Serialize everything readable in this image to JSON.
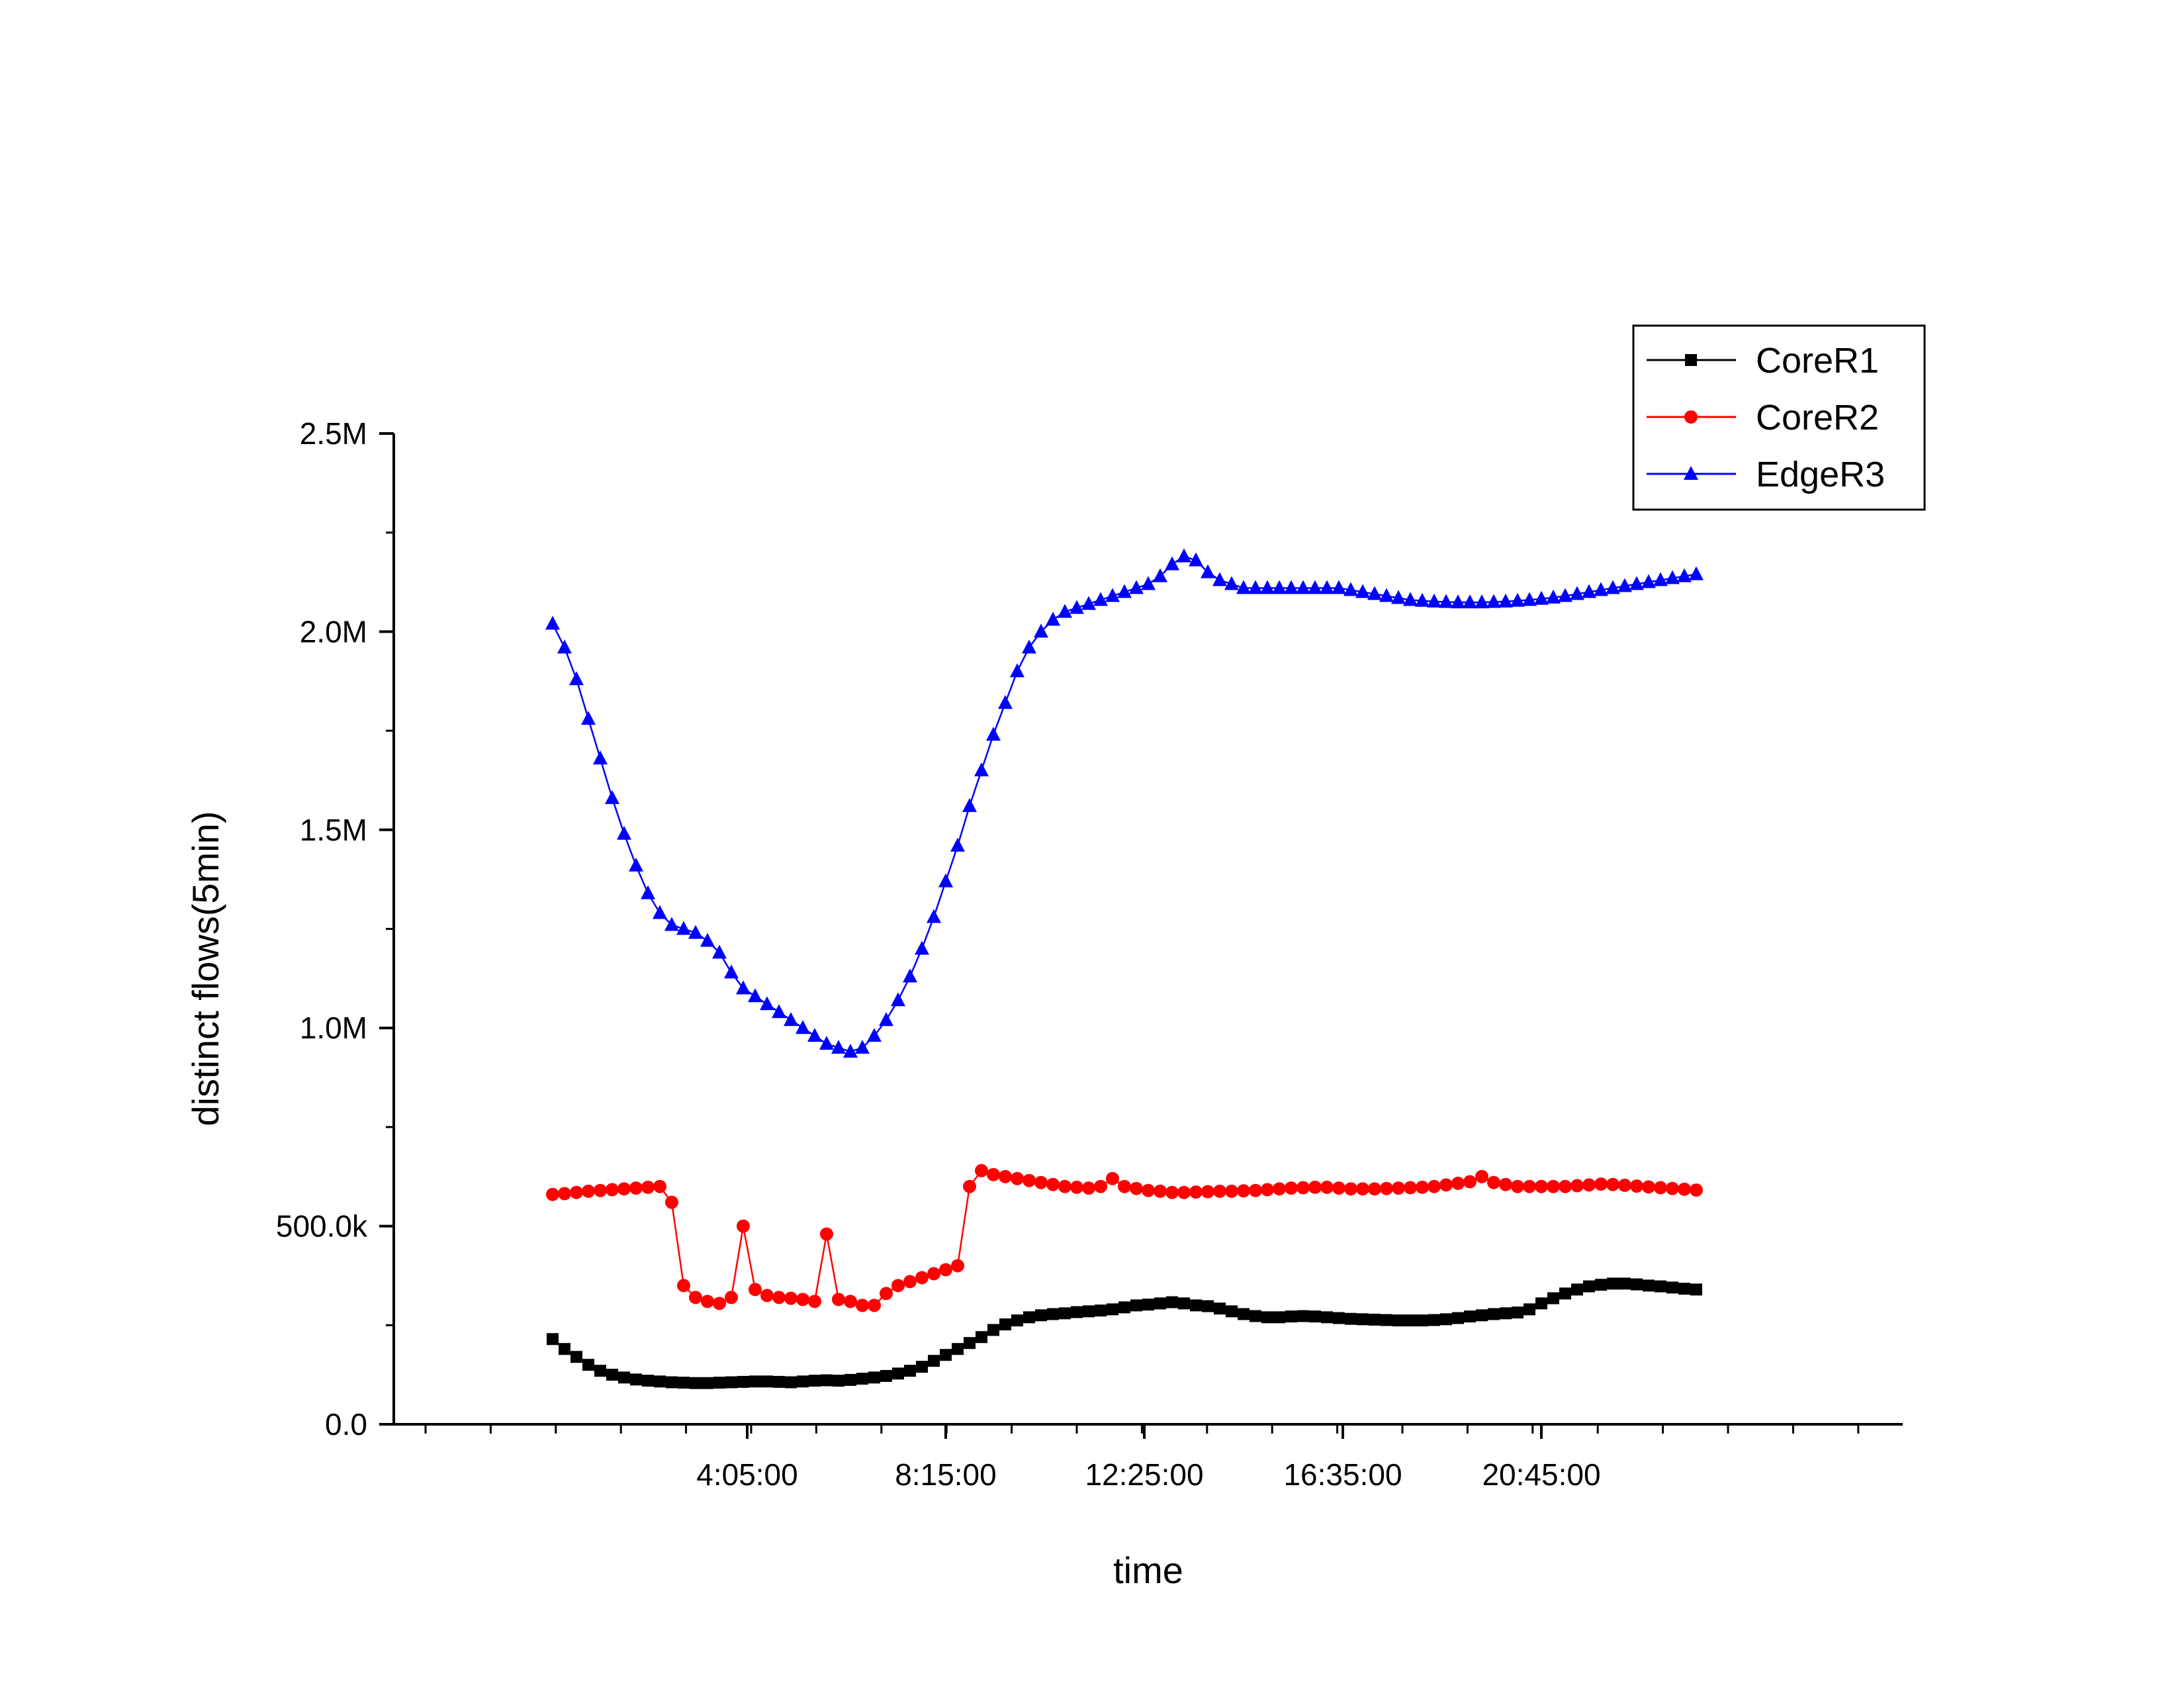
{
  "chart_data": {
    "type": "line",
    "title": "",
    "xlabel": "time",
    "ylabel": "distinct flows(5min)",
    "x_unit": "minutes since 0:00",
    "xlim": [
      -200,
      1700
    ],
    "ylim": [
      0,
      2500000
    ],
    "grid": false,
    "legend_position": "top-right",
    "x_ticks": [
      {
        "value": 245,
        "label": "4:05:00"
      },
      {
        "value": 495,
        "label": "8:15:00"
      },
      {
        "value": 745,
        "label": "12:25:00"
      },
      {
        "value": 995,
        "label": "16:35:00"
      },
      {
        "value": 1245,
        "label": "20:45:00"
      }
    ],
    "y_ticks": [
      {
        "value": 0,
        "label": "0.0"
      },
      {
        "value": 500000,
        "label": "500.0k"
      },
      {
        "value": 1000000,
        "label": "1.0M"
      },
      {
        "value": 1500000,
        "label": "1.5M"
      },
      {
        "value": 2000000,
        "label": "2.0M"
      },
      {
        "value": 2500000,
        "label": "2.5M"
      }
    ],
    "x": [
      0,
      15,
      30,
      45,
      60,
      75,
      90,
      105,
      120,
      135,
      150,
      165,
      180,
      195,
      210,
      225,
      240,
      255,
      270,
      285,
      300,
      315,
      330,
      345,
      360,
      375,
      390,
      405,
      420,
      435,
      450,
      465,
      480,
      495,
      510,
      525,
      540,
      555,
      570,
      585,
      600,
      615,
      630,
      645,
      660,
      675,
      690,
      705,
      720,
      735,
      750,
      765,
      780,
      795,
      810,
      825,
      840,
      855,
      870,
      885,
      900,
      915,
      930,
      945,
      960,
      975,
      990,
      1005,
      1020,
      1035,
      1050,
      1065,
      1080,
      1095,
      1110,
      1125,
      1140,
      1155,
      1170,
      1185,
      1200,
      1215,
      1230,
      1245,
      1260,
      1275,
      1290,
      1305,
      1320,
      1335,
      1350,
      1365,
      1380,
      1395,
      1410,
      1425,
      1440
    ],
    "series": [
      {
        "name": "CoreR1",
        "color": "#000000",
        "marker": "square",
        "values": [
          215000,
          190000,
          170000,
          150000,
          135000,
          125000,
          118000,
          113000,
          110000,
          108000,
          106000,
          105000,
          104000,
          104000,
          105000,
          106000,
          107000,
          108000,
          108000,
          107000,
          106000,
          108000,
          110000,
          111000,
          110000,
          112000,
          115000,
          118000,
          122000,
          128000,
          135000,
          145000,
          160000,
          175000,
          190000,
          205000,
          220000,
          238000,
          252000,
          262000,
          270000,
          275000,
          278000,
          280000,
          283000,
          285000,
          287000,
          290000,
          295000,
          300000,
          302000,
          305000,
          308000,
          305000,
          300000,
          298000,
          292000,
          285000,
          278000,
          273000,
          270000,
          270000,
          272000,
          273000,
          272000,
          270000,
          268000,
          266000,
          265000,
          264000,
          263000,
          262000,
          262000,
          262000,
          263000,
          265000,
          268000,
          272000,
          275000,
          278000,
          280000,
          282000,
          290000,
          305000,
          318000,
          330000,
          340000,
          348000,
          352000,
          355000,
          355000,
          353000,
          350000,
          348000,
          345000,
          342000,
          340000
        ]
      },
      {
        "name": "CoreR2",
        "color": "#ff0000",
        "marker": "circle",
        "values": [
          580000,
          582000,
          585000,
          588000,
          590000,
          592000,
          594000,
          596000,
          598000,
          600000,
          560000,
          350000,
          320000,
          310000,
          305000,
          320000,
          500000,
          340000,
          325000,
          320000,
          318000,
          315000,
          310000,
          480000,
          315000,
          310000,
          300000,
          300000,
          330000,
          350000,
          360000,
          370000,
          380000,
          390000,
          400000,
          600000,
          640000,
          630000,
          625000,
          620000,
          615000,
          610000,
          605000,
          600000,
          598000,
          596000,
          600000,
          620000,
          600000,
          595000,
          590000,
          588000,
          585000,
          585000,
          586000,
          587000,
          588000,
          588000,
          589000,
          590000,
          592000,
          594000,
          596000,
          597000,
          598000,
          598000,
          596000,
          594000,
          594000,
          594000,
          595000,
          596000,
          597000,
          598000,
          600000,
          604000,
          608000,
          612000,
          625000,
          610000,
          605000,
          600000,
          600000,
          600000,
          600000,
          600000,
          602000,
          604000,
          606000,
          605000,
          603000,
          601000,
          599000,
          597000,
          595000,
          593000,
          591000
        ]
      },
      {
        "name": "EdgeR3",
        "color": "#0000ff",
        "marker": "triangle",
        "values": [
          2020000,
          1960000,
          1880000,
          1780000,
          1680000,
          1580000,
          1490000,
          1410000,
          1340000,
          1290000,
          1260000,
          1250000,
          1240000,
          1220000,
          1190000,
          1140000,
          1100000,
          1080000,
          1060000,
          1040000,
          1020000,
          1000000,
          980000,
          960000,
          950000,
          940000,
          950000,
          980000,
          1020000,
          1070000,
          1130000,
          1200000,
          1280000,
          1370000,
          1460000,
          1560000,
          1650000,
          1740000,
          1820000,
          1900000,
          1960000,
          2000000,
          2030000,
          2050000,
          2060000,
          2070000,
          2080000,
          2090000,
          2100000,
          2110000,
          2120000,
          2140000,
          2170000,
          2190000,
          2180000,
          2150000,
          2130000,
          2120000,
          2110000,
          2110000,
          2110000,
          2110000,
          2110000,
          2110000,
          2110000,
          2110000,
          2110000,
          2105000,
          2100000,
          2095000,
          2090000,
          2085000,
          2080000,
          2078000,
          2076000,
          2075000,
          2074000,
          2074000,
          2074000,
          2075000,
          2076000,
          2078000,
          2080000,
          2083000,
          2086000,
          2090000,
          2095000,
          2100000,
          2105000,
          2110000,
          2115000,
          2120000,
          2125000,
          2130000,
          2135000,
          2140000,
          2145000
        ]
      }
    ]
  }
}
